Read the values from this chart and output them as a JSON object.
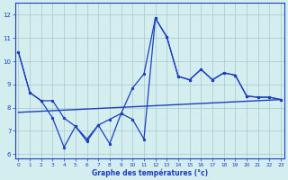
{
  "x": [
    0,
    1,
    2,
    3,
    4,
    5,
    6,
    7,
    8,
    9,
    10,
    11,
    12,
    13,
    14,
    15,
    16,
    17,
    18,
    19,
    20,
    21,
    22,
    23
  ],
  "line_top": [
    10.4,
    8.65,
    8.3,
    8.3,
    7.55,
    7.2,
    6.65,
    7.25,
    7.5,
    7.75,
    8.85,
    9.45,
    11.85,
    11.05,
    9.35,
    9.2,
    9.65,
    9.2,
    9.5,
    9.4,
    8.5,
    8.45,
    8.45,
    8.35
  ],
  "line_bot": [
    10.4,
    8.65,
    8.3,
    7.55,
    6.3,
    7.2,
    6.55,
    7.25,
    6.45,
    7.75,
    7.5,
    6.65,
    11.85,
    11.05,
    9.35,
    9.2,
    9.65,
    9.2,
    9.5,
    9.4,
    8.5,
    8.45,
    8.45,
    8.35
  ],
  "trend_x": [
    0,
    23
  ],
  "trend_y": [
    7.8,
    8.35
  ],
  "line_color": "#1c3fbd",
  "bg_color": "#d4eef0",
  "grid_color": "#a8c8cc",
  "xlabel": "Graphe des températures (°c)",
  "ylim": [
    5.8,
    12.5
  ],
  "xlim": [
    -0.3,
    23.3
  ],
  "yticks": [
    6,
    7,
    8,
    9,
    10,
    11,
    12
  ],
  "xticks": [
    0,
    1,
    2,
    3,
    4,
    5,
    6,
    7,
    8,
    9,
    10,
    11,
    12,
    13,
    14,
    15,
    16,
    17,
    18,
    19,
    20,
    21,
    22,
    23
  ]
}
